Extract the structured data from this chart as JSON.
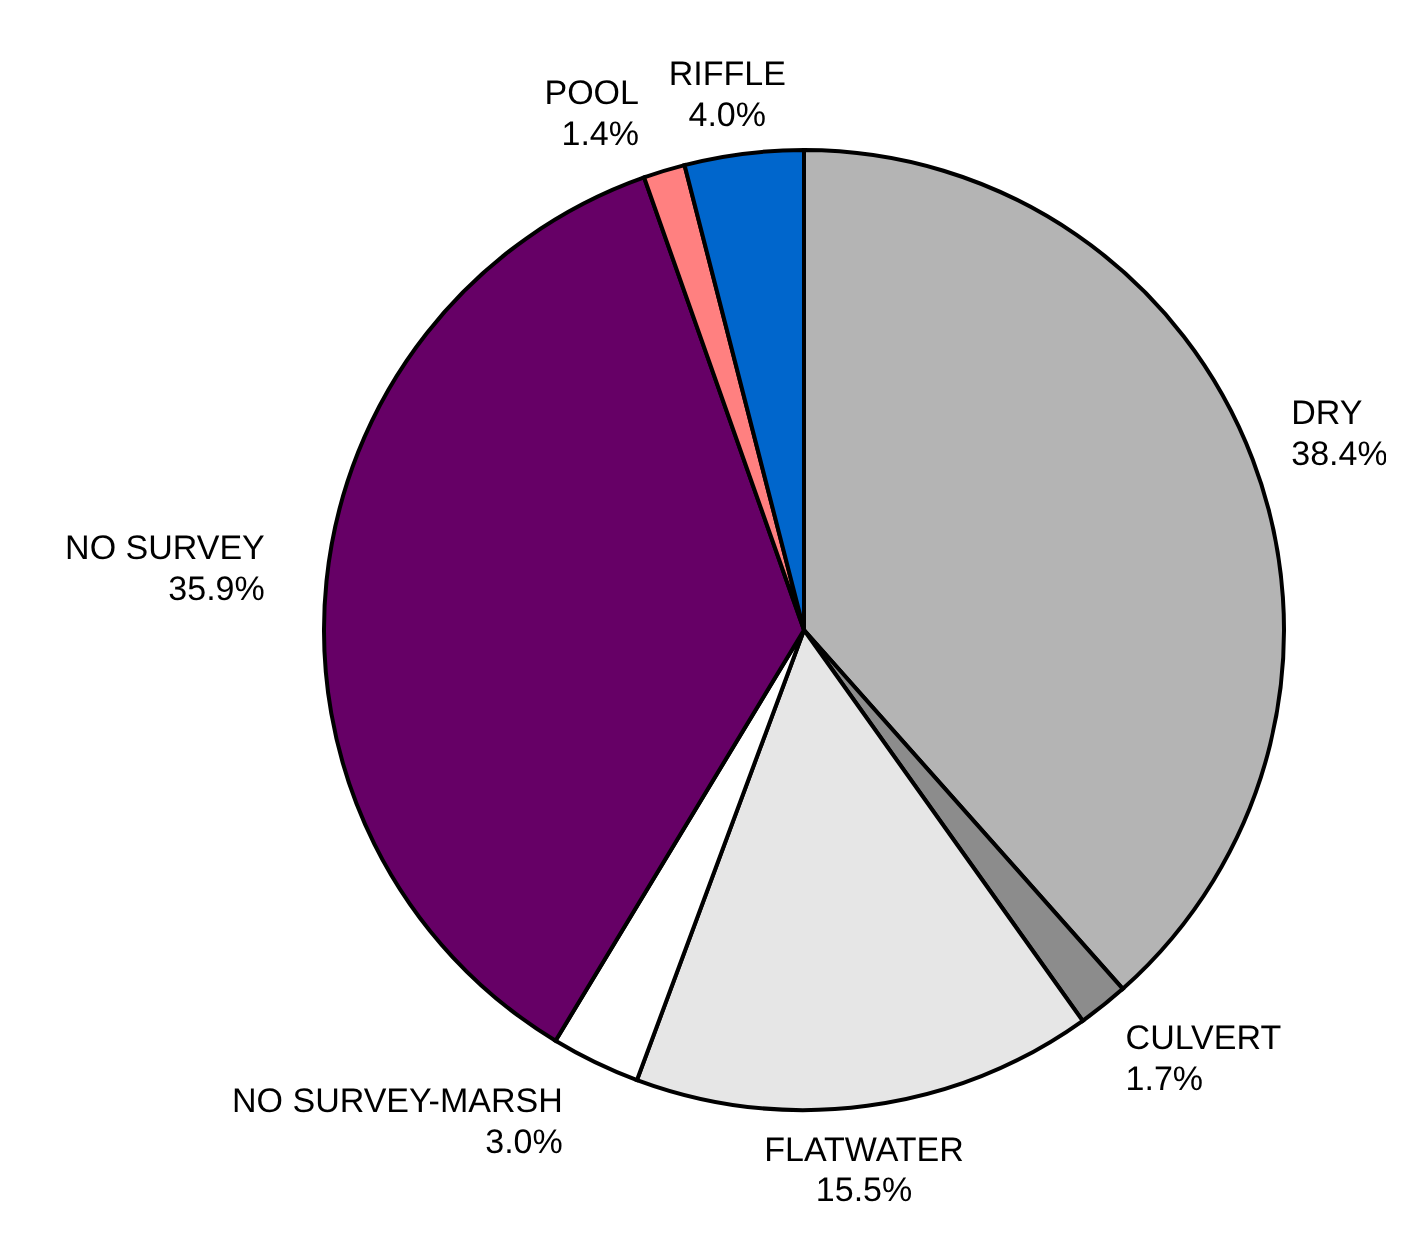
{
  "chart_data": {
    "type": "pie",
    "categories": [
      "DRY",
      "CULVERT",
      "FLATWATER",
      "NO SURVEY-MARSH",
      "NO SURVEY",
      "POOL",
      "RIFFLE"
    ],
    "values": [
      38.4,
      1.7,
      15.5,
      3.0,
      35.9,
      1.4,
      4.0
    ],
    "value_labels": [
      "38.4%",
      "1.7%",
      "15.5%",
      "3.0%",
      "35.9%",
      "1.4%",
      "4.0%"
    ],
    "colors": [
      "#b4b4b4",
      "#8c8c8c",
      "#e6e6e6",
      "#ffffff",
      "#660066",
      "#ff8080",
      "#0066cc"
    ],
    "legend": false
  }
}
